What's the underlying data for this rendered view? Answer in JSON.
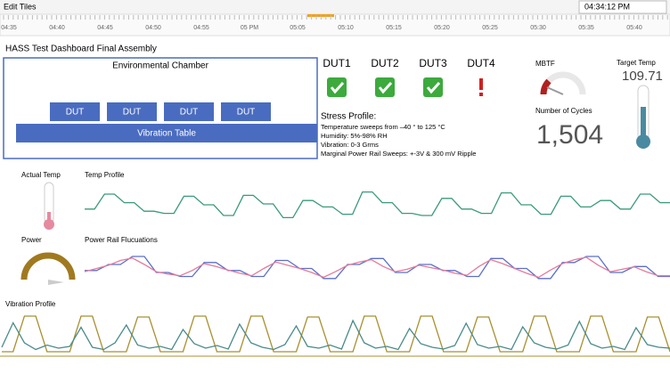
{
  "top_bar": {
    "edit": "Edit Tiles",
    "clock": "04:34:12 PM"
  },
  "timeline": {
    "ticks": [
      "04:35",
      "04:40",
      "04:45",
      "04:50",
      "04:55",
      "05 PM",
      "05:05",
      "05:10",
      "05:15",
      "05:20",
      "05:25",
      "05:30",
      "05:35",
      "05:40"
    ]
  },
  "title": "HASS Test Dashboard Final Assembly",
  "chamber": {
    "title": "Environmental Chamber",
    "duts": [
      "DUT",
      "DUT",
      "DUT",
      "DUT"
    ],
    "table": "Vibration Table"
  },
  "duts": [
    "DUT1",
    "DUT2",
    "DUT3",
    "DUT4"
  ],
  "stress_profile": {
    "title": "Stress Profile:",
    "lines": [
      "Temperature sweeps from –40 ° to 125 °C",
      "Humidity: 5%-98% RH",
      "Vibration: 0-3 Grms",
      "Marginal Power Rail Sweeps: +-3V & 300 mV Ripple"
    ]
  },
  "mtbf": {
    "label": "MBTF"
  },
  "cycles": {
    "label": "Number of Cycles",
    "value": "1,504"
  },
  "target_temp": {
    "label": "Target Temp",
    "value": 109.71
  },
  "actual_temp": {
    "label": "Actual Temp"
  },
  "power": {
    "label": "Power"
  },
  "charts": [
    {
      "type": "line",
      "title": "Temp Profile",
      "ylim": [
        0,
        100
      ],
      "series": [
        {
          "color": "#3a9a7a",
          "values": [
            40,
            40,
            75,
            75,
            55,
            55,
            35,
            35,
            30,
            30,
            70,
            70,
            50,
            50,
            25,
            25,
            72,
            72,
            52,
            52,
            20,
            20,
            60,
            60,
            45,
            45,
            28,
            28,
            80,
            80,
            55,
            55,
            30,
            30,
            25,
            25,
            65,
            65,
            40,
            40,
            30,
            30,
            78,
            78,
            50,
            50,
            28,
            28,
            70,
            70,
            45,
            45,
            60,
            60,
            40,
            40,
            75,
            75,
            55,
            55
          ]
        }
      ]
    },
    {
      "type": "line",
      "title": "Power Rail Flucuations",
      "ylim": [
        0,
        100
      ],
      "series": [
        {
          "color": "#5b6fc9",
          "values": [
            45,
            45,
            60,
            60,
            80,
            80,
            40,
            40,
            30,
            30,
            65,
            65,
            45,
            45,
            30,
            30,
            70,
            70,
            50,
            50,
            25,
            25,
            60,
            60,
            75,
            75,
            40,
            40,
            60,
            60,
            45,
            45,
            30,
            30,
            75,
            75,
            50,
            50,
            25,
            25,
            65,
            65,
            80,
            80,
            40,
            40,
            55,
            55,
            30,
            30
          ]
        },
        {
          "color": "#e57a9a",
          "values": [
            42,
            50,
            58,
            70,
            76,
            60,
            42,
            36,
            32,
            45,
            62,
            55,
            46,
            38,
            32,
            50,
            66,
            58,
            50,
            40,
            28,
            42,
            58,
            66,
            72,
            55,
            42,
            48,
            58,
            52,
            46,
            38,
            33,
            55,
            72,
            62,
            50,
            38,
            28,
            46,
            62,
            72,
            78,
            58,
            42,
            48,
            54,
            42,
            32,
            32
          ]
        }
      ]
    },
    {
      "type": "line",
      "title": "Vibration Profile",
      "ylim": [
        0,
        100
      ],
      "series": [
        {
          "color": "#a89030",
          "values": [
            10,
            10,
            90,
            90,
            10,
            10,
            10,
            90,
            90,
            10,
            10,
            10,
            88,
            88,
            10,
            10,
            10,
            90,
            90,
            10,
            10,
            10,
            90,
            90,
            10,
            10,
            10,
            88,
            88,
            10,
            10,
            10,
            90,
            90,
            10,
            10,
            10,
            90,
            90,
            10,
            10,
            10,
            88,
            88,
            10,
            10,
            10,
            90,
            90,
            10,
            10,
            10,
            90,
            90,
            10,
            10,
            10,
            88,
            88,
            10
          ]
        },
        {
          "color": "#4a8a8a",
          "values": [
            20,
            75,
            30,
            15,
            25,
            18,
            22,
            65,
            20,
            15,
            30,
            70,
            25,
            18,
            22,
            15,
            60,
            28,
            18,
            24,
            16,
            72,
            30,
            20,
            15,
            26,
            68,
            22,
            18,
            25,
            16,
            80,
            30,
            18,
            22,
            15,
            62,
            28,
            20,
            16,
            24,
            74,
            26,
            18,
            22,
            15,
            66,
            30,
            20,
            16,
            25,
            78,
            28,
            18,
            22,
            15,
            64,
            26,
            20,
            18
          ]
        }
      ]
    }
  ]
}
